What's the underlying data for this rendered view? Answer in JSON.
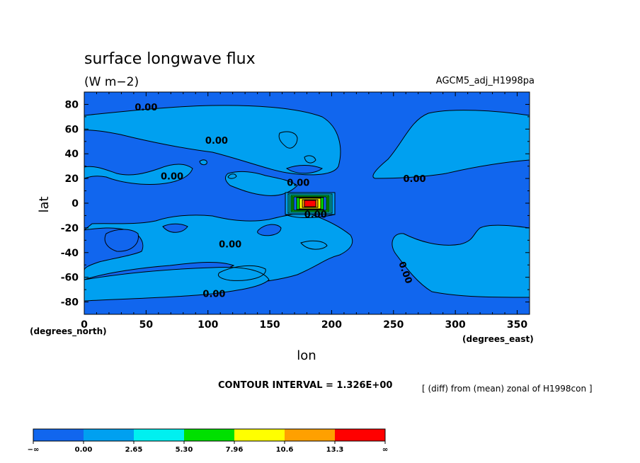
{
  "chart_data": {
    "type": "heatmap",
    "title": "surface longwave flux",
    "units": "(W m−2)",
    "run_label": "AGCM5_adj_H1998pa",
    "xlabel": "lon",
    "ylabel": "lat",
    "x_unit_label": "(degrees_east)",
    "y_unit_label": "(degrees_north)",
    "xlim": [
      0,
      360
    ],
    "ylim": [
      -90,
      90
    ],
    "x_ticks": [
      0,
      50,
      100,
      150,
      200,
      250,
      300,
      350
    ],
    "y_ticks": [
      80,
      60,
      40,
      20,
      0,
      -20,
      -40,
      -60,
      -80
    ],
    "contour_interval_text": "CONTOUR INTERVAL = 1.326E+00",
    "note": "[ (diff) from (mean) zonal of H1998con ]",
    "colorbar": {
      "colors": [
        "#1166ee",
        "#00a0f0",
        "#00f0f0",
        "#00e000",
        "#ffff00",
        "#ffa000",
        "#ff0000"
      ],
      "labels": [
        "−∞",
        "0.00",
        "2.65",
        "5.30",
        "7.96",
        "10.6",
        "13.3",
        "∞"
      ]
    },
    "contour_labels": [
      {
        "text": "0.00",
        "lon": 50,
        "lat": 78
      },
      {
        "text": "0.00",
        "lon": 107,
        "lat": 51
      },
      {
        "text": "0.00",
        "lon": 71,
        "lat": 22
      },
      {
        "text": "0.00",
        "lon": 173,
        "lat": 17
      },
      {
        "text": "0.00",
        "lon": 187,
        "lat": -9
      },
      {
        "text": "0.00",
        "lon": 118,
        "lat": -33
      },
      {
        "text": "0.00",
        "lon": 105,
        "lat": -73
      },
      {
        "text": "0.00",
        "lon": 267,
        "lat": 20
      },
      {
        "text": "0.00",
        "lon": 260,
        "lat": -56
      }
    ]
  }
}
